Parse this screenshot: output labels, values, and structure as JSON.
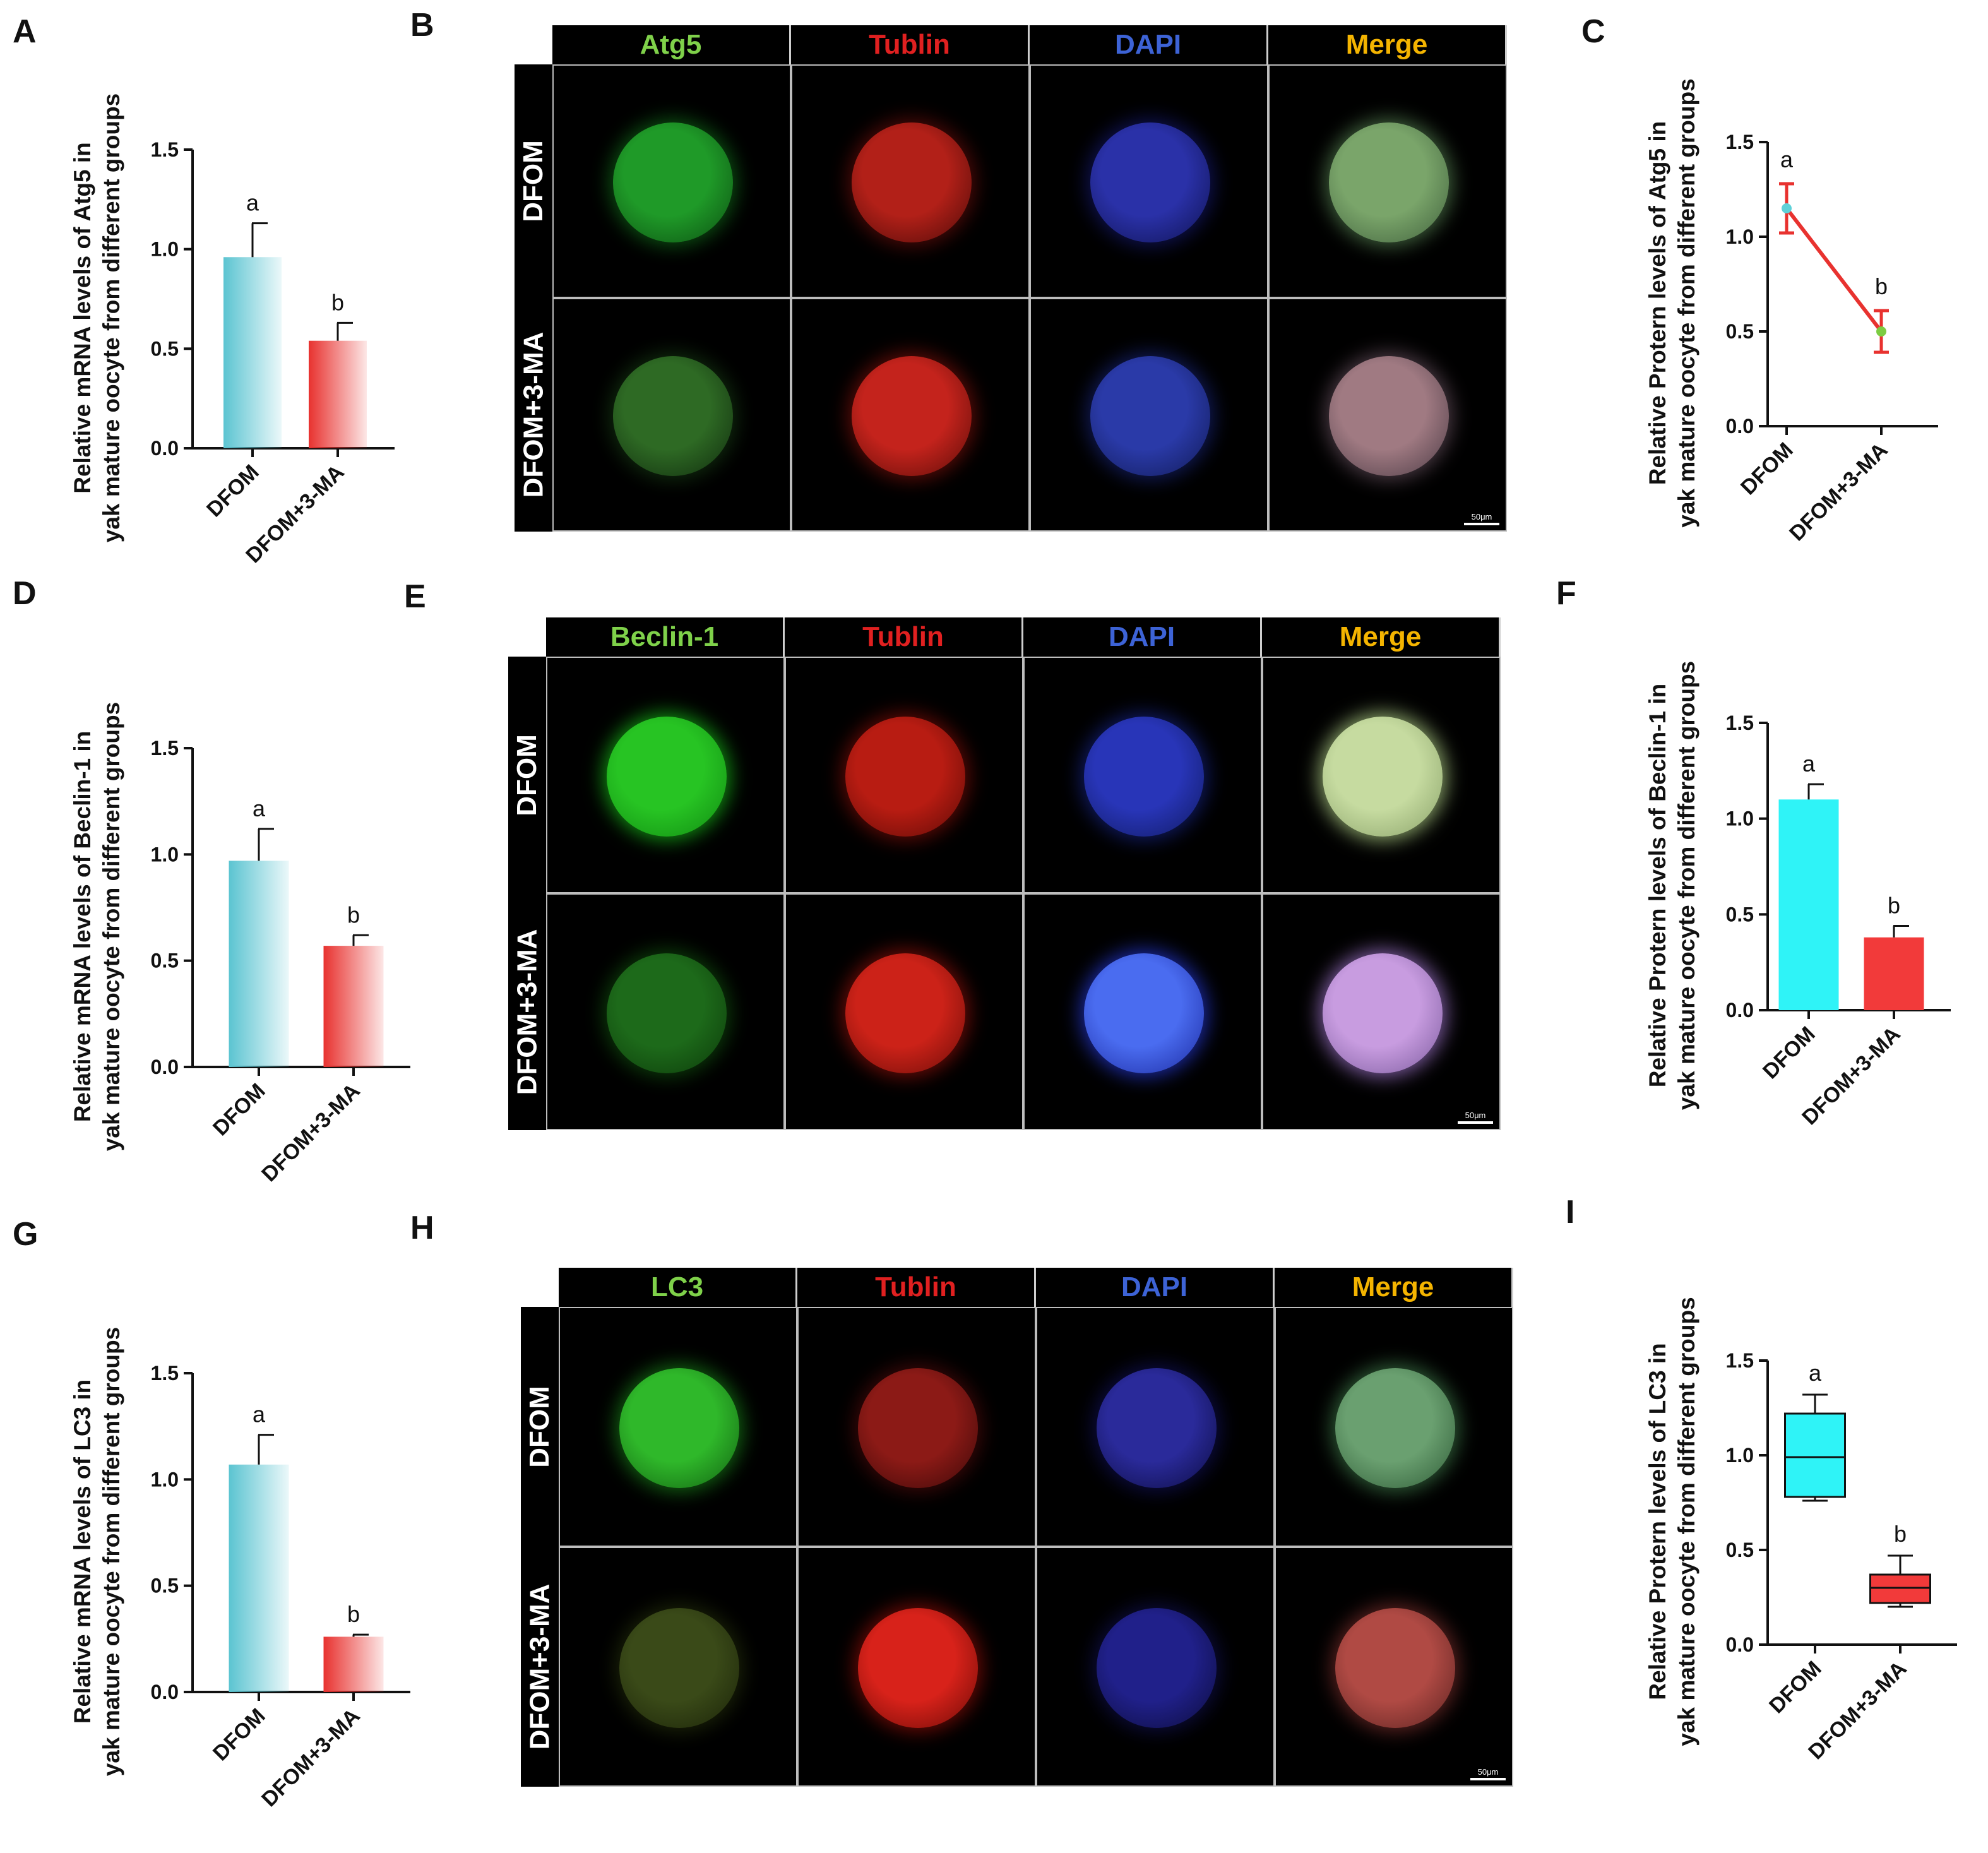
{
  "figure": {
    "panels": {
      "A": "A",
      "B": "B",
      "C": "C",
      "D": "D",
      "E": "E",
      "F": "F",
      "G": "G",
      "H": "H",
      "I": "I"
    },
    "micrographs": [
      {
        "id": "B",
        "columns": [
          "Atg5",
          "Tublin",
          "DAPI",
          "Merge"
        ],
        "column_colors": [
          "#7fd14a",
          "#e02020",
          "#3d63d6",
          "#f4b400"
        ],
        "rows": [
          "DFOM",
          "DFOM+3-MA"
        ],
        "scale_bar": "50μm"
      },
      {
        "id": "E",
        "columns": [
          "Beclin-1",
          "Tublin",
          "DAPI",
          "Merge"
        ],
        "column_colors": [
          "#7fd14a",
          "#e02020",
          "#3d63d6",
          "#f4b400"
        ],
        "rows": [
          "DFOM",
          "DFOM+3-MA"
        ],
        "scale_bar": "50μm"
      },
      {
        "id": "H",
        "columns": [
          "LC3",
          "Tublin",
          "DAPI",
          "Merge"
        ],
        "column_colors": [
          "#7fd14a",
          "#e02020",
          "#3d63d6",
          "#f4b400"
        ],
        "rows": [
          "DFOM",
          "DFOM+3-MA"
        ],
        "scale_bar": "50μm"
      }
    ]
  },
  "chart_data": [
    {
      "id": "A",
      "type": "bar",
      "style": "gradient",
      "categories": [
        "DFOM",
        "DFOM+3-MA"
      ],
      "values": [
        0.96,
        0.54
      ],
      "errors": [
        0.17,
        0.09
      ],
      "letters": [
        "a",
        "b"
      ],
      "ylabel_line1": "Relative mRNA levels of Atg5 in",
      "ylabel_line2": "yak mature oocyte from different groups",
      "ylim": [
        0,
        1.5
      ],
      "yticks": [
        "0.0",
        "0.5",
        "1.0",
        "1.5"
      ],
      "colors": [
        "#5bc4d1",
        "#e8322f"
      ]
    },
    {
      "id": "C",
      "type": "line",
      "categories": [
        "DFOM",
        "DFOM+3-MA"
      ],
      "values": [
        1.15,
        0.5
      ],
      "errors": [
        0.13,
        0.11
      ],
      "letters": [
        "a",
        "b"
      ],
      "ylabel_line1": "Relative Protern levels of Atg5 in",
      "ylabel_line2": "yak mature oocyte from different groups",
      "ylim": [
        0,
        1.5
      ],
      "yticks": [
        "0.0",
        "0.5",
        "1.0",
        "1.5"
      ],
      "colors": [
        "#e8322f",
        "#5ed1d8",
        "#7ccc42"
      ]
    },
    {
      "id": "D",
      "type": "bar",
      "style": "gradient",
      "categories": [
        "DFOM",
        "DFOM+3-MA"
      ],
      "values": [
        0.97,
        0.57
      ],
      "errors": [
        0.15,
        0.05
      ],
      "letters": [
        "a",
        "b"
      ],
      "ylabel_line1": "Relative mRNA levels of Beclin-1 in",
      "ylabel_line2": "yak mature oocyte from different groups",
      "ylim": [
        0,
        1.5
      ],
      "yticks": [
        "0.0",
        "0.5",
        "1.0",
        "1.5"
      ],
      "colors": [
        "#5bc4d1",
        "#e8322f"
      ]
    },
    {
      "id": "F",
      "type": "bar",
      "style": "solid",
      "categories": [
        "DFOM",
        "DFOM+3-MA"
      ],
      "values": [
        1.1,
        0.38
      ],
      "errors": [
        0.08,
        0.06
      ],
      "letters": [
        "a",
        "b"
      ],
      "ylabel_line1": "Relative Protern levels of Beclin-1 in",
      "ylabel_line2": "yak mature oocyte from different groups",
      "ylim": [
        0,
        1.5
      ],
      "yticks": [
        "0.0",
        "0.5",
        "1.0",
        "1.5"
      ],
      "colors": [
        "#2ff3f7",
        "#f23a3a"
      ]
    },
    {
      "id": "G",
      "type": "bar",
      "style": "gradient",
      "categories": [
        "DFOM",
        "DFOM+3-MA"
      ],
      "values": [
        1.07,
        0.26
      ],
      "errors": [
        0.14,
        0.01
      ],
      "letters": [
        "a",
        "b"
      ],
      "ylabel_line1": "Relative mRNA levels of LC3 in",
      "ylabel_line2": "yak mature oocyte from different groups",
      "ylim": [
        0,
        1.5
      ],
      "yticks": [
        "0.0",
        "0.5",
        "1.0",
        "1.5"
      ],
      "colors": [
        "#5bc4d1",
        "#e8322f"
      ]
    },
    {
      "id": "I",
      "type": "box",
      "categories": [
        "DFOM",
        "DFOM+3-MA"
      ],
      "boxes": [
        {
          "min": 0.76,
          "q1": 0.78,
          "median": 0.99,
          "q3": 1.22,
          "max": 1.32
        },
        {
          "min": 0.2,
          "q1": 0.22,
          "median": 0.3,
          "q3": 0.37,
          "max": 0.47
        }
      ],
      "letters": [
        "a",
        "b"
      ],
      "ylabel_line1": "Relative Protern levels of LC3 in",
      "ylabel_line2": "yak mature oocyte from different groups",
      "ylim": [
        0,
        1.5
      ],
      "yticks": [
        "0.0",
        "0.5",
        "1.0",
        "1.5"
      ],
      "colors": [
        "#2ff3f7",
        "#f23a3a"
      ]
    }
  ]
}
